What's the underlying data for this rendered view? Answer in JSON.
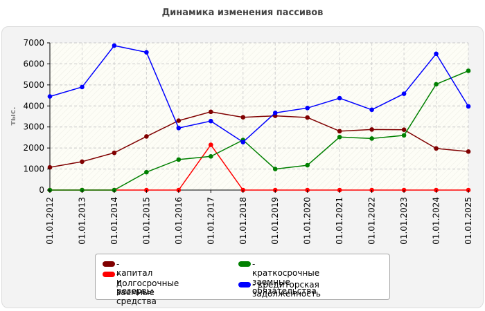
{
  "chart_data": {
    "type": "line",
    "title": "Динамика изменения пассивов",
    "ylabel": "тыс.",
    "xlabel": "",
    "ylim": [
      0,
      7000
    ],
    "yticks": [
      0,
      1000,
      2000,
      3000,
      4000,
      5000,
      6000,
      7000
    ],
    "grid": true,
    "legend_position": "bottom",
    "categories": [
      "01.01.2012",
      "01.01.2013",
      "01.01.2014",
      "01.01.2015",
      "01.01.2016",
      "01.01.2017",
      "01.01.2018",
      "01.01.2019",
      "01.01.2020",
      "01.01.2021",
      "01.01.2022",
      "01.01.2023",
      "01.01.2024",
      "01.01.2025"
    ],
    "series": [
      {
        "name": "капитал и резервы",
        "color": "#800000",
        "values": [
          1080,
          1350,
          1770,
          2550,
          3300,
          3720,
          3460,
          3530,
          3450,
          2800,
          2880,
          2870,
          1980,
          1830
        ]
      },
      {
        "name": "долгосрочные заемные средства",
        "color": "#ff0000",
        "values": [
          0,
          0,
          0,
          0,
          0,
          2150,
          0,
          0,
          0,
          0,
          0,
          0,
          0,
          0
        ]
      },
      {
        "name": "краткосрочные заемные обязательства",
        "color": "#008000",
        "values": [
          0,
          0,
          0,
          850,
          1450,
          1600,
          2380,
          1000,
          1180,
          2520,
          2450,
          2600,
          5030,
          5670
        ]
      },
      {
        "name": "кредиторская задолженность",
        "color": "#0000ff",
        "values": [
          4450,
          4900,
          6870,
          6550,
          2950,
          3280,
          2280,
          3670,
          3900,
          4370,
          3820,
          4580,
          6480,
          3980
        ]
      }
    ]
  },
  "legend": {
    "items": [
      {
        "label": "- капитал и резервы"
      },
      {
        "label": "- долгосрочные заемные\nсредства"
      },
      {
        "label": "- краткосрочные заемные\nобязательства"
      },
      {
        "label": "- кредиторская задолженность"
      }
    ]
  }
}
